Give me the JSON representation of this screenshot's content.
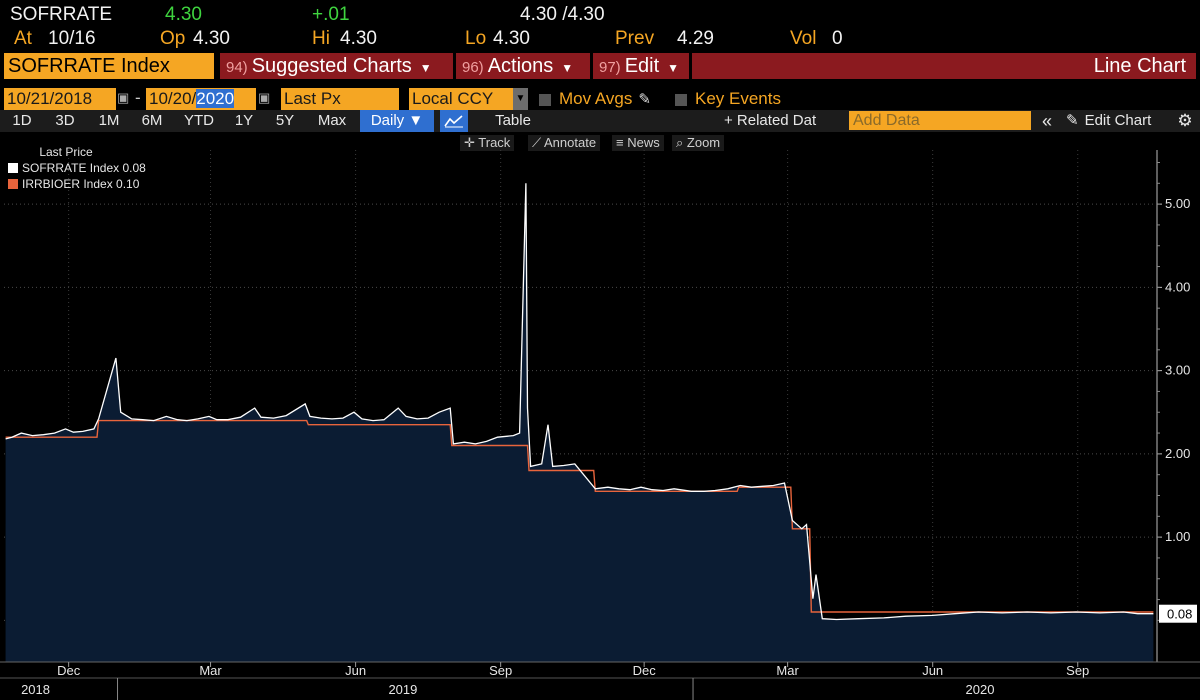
{
  "quote": {
    "ticker": "SOFRRATE",
    "last": "4.30",
    "change": "+.01",
    "bid_ask": "4.30 /4.30",
    "at_label": "At",
    "at_value": "10/16",
    "open_label": "Op",
    "open_value": "4.30",
    "high_label": "Hi",
    "high_value": "4.30",
    "low_label": "Lo",
    "low_value": "4.30",
    "prev_label": "Prev",
    "prev_value": "4.29",
    "vol_label": "Vol",
    "vol_value": "0"
  },
  "command": {
    "security": "SOFRRATE Index",
    "menu": [
      {
        "num": "94)",
        "label": "Suggested Charts"
      },
      {
        "num": "96)",
        "label": "Actions"
      },
      {
        "num": "97)",
        "label": "Edit"
      }
    ],
    "view": "Line Chart"
  },
  "params": {
    "start_date": "10/21/2018",
    "end_date_prefix": "10/20/",
    "end_date_year": "2020",
    "field": "Last Px",
    "currency": "Local CCY",
    "mov_avgs": "Mov Avgs",
    "key_events": "Key Events"
  },
  "ranges": [
    "1D",
    "3D",
    "1M",
    "6M",
    "YTD",
    "1Y",
    "5Y",
    "Max"
  ],
  "toolbar": {
    "frequency": "Daily ▼",
    "table": "Table",
    "related": "+ Related Dat",
    "add_data_placeholder": "Add Data",
    "edit_chart": "Edit Chart"
  },
  "tools": [
    "Track",
    "Annotate",
    "News",
    "Zoom"
  ],
  "colors": {
    "bg": "#000000",
    "amber": "#f5a623",
    "red_bar": "#8b1a1f",
    "sofr": "#ffffff",
    "ioer": "#e8643c",
    "area": "#0b1c33"
  },
  "chart_data": {
    "type": "line",
    "legend_title": "Last Price",
    "series": [
      {
        "name": "SOFRRATE Index",
        "last_label": "0.08",
        "points": [
          [
            "2018-10-22",
            2.18
          ],
          [
            "2018-10-26",
            2.2
          ],
          [
            "2018-11-01",
            2.25
          ],
          [
            "2018-11-08",
            2.22
          ],
          [
            "2018-11-15",
            2.23
          ],
          [
            "2018-11-22",
            2.25
          ],
          [
            "2018-11-29",
            2.3
          ],
          [
            "2018-12-04",
            2.26
          ],
          [
            "2018-12-10",
            2.27
          ],
          [
            "2018-12-17",
            2.3
          ],
          [
            "2018-12-20",
            2.42
          ],
          [
            "2018-12-31",
            3.15
          ],
          [
            "2019-01-03",
            2.5
          ],
          [
            "2019-01-10",
            2.42
          ],
          [
            "2019-01-17",
            2.41
          ],
          [
            "2019-01-24",
            2.4
          ],
          [
            "2019-02-01",
            2.45
          ],
          [
            "2019-02-08",
            2.41
          ],
          [
            "2019-02-14",
            2.4
          ],
          [
            "2019-02-21",
            2.42
          ],
          [
            "2019-02-28",
            2.45
          ],
          [
            "2019-03-05",
            2.41
          ],
          [
            "2019-03-12",
            2.41
          ],
          [
            "2019-03-20",
            2.44
          ],
          [
            "2019-03-29",
            2.55
          ],
          [
            "2019-04-02",
            2.44
          ],
          [
            "2019-04-10",
            2.43
          ],
          [
            "2019-04-18",
            2.46
          ],
          [
            "2019-04-30",
            2.6
          ],
          [
            "2019-05-03",
            2.45
          ],
          [
            "2019-05-10",
            2.43
          ],
          [
            "2019-05-17",
            2.42
          ],
          [
            "2019-05-24",
            2.43
          ],
          [
            "2019-05-31",
            2.5
          ],
          [
            "2019-06-05",
            2.42
          ],
          [
            "2019-06-12",
            2.4
          ],
          [
            "2019-06-19",
            2.41
          ],
          [
            "2019-06-28",
            2.55
          ],
          [
            "2019-07-03",
            2.45
          ],
          [
            "2019-07-10",
            2.42
          ],
          [
            "2019-07-17",
            2.43
          ],
          [
            "2019-07-24",
            2.5
          ],
          [
            "2019-07-31",
            2.55
          ],
          [
            "2019-08-02",
            2.12
          ],
          [
            "2019-08-09",
            2.14
          ],
          [
            "2019-08-16",
            2.12
          ],
          [
            "2019-08-23",
            2.15
          ],
          [
            "2019-08-30",
            2.2
          ],
          [
            "2019-09-09",
            2.22
          ],
          [
            "2019-09-13",
            2.25
          ],
          [
            "2019-09-17",
            5.25
          ],
          [
            "2019-09-18",
            2.55
          ],
          [
            "2019-09-20",
            1.85
          ],
          [
            "2019-09-27",
            1.88
          ],
          [
            "2019-10-01",
            2.35
          ],
          [
            "2019-10-04",
            1.85
          ],
          [
            "2019-10-11",
            1.86
          ],
          [
            "2019-10-18",
            1.88
          ],
          [
            "2019-10-31",
            1.58
          ],
          [
            "2019-11-08",
            1.6
          ],
          [
            "2019-11-15",
            1.58
          ],
          [
            "2019-11-22",
            1.57
          ],
          [
            "2019-11-29",
            1.6
          ],
          [
            "2019-12-06",
            1.57
          ],
          [
            "2019-12-13",
            1.56
          ],
          [
            "2019-12-20",
            1.58
          ],
          [
            "2019-12-31",
            1.55
          ],
          [
            "2020-01-08",
            1.55
          ],
          [
            "2020-01-15",
            1.56
          ],
          [
            "2020-01-23",
            1.58
          ],
          [
            "2020-01-31",
            1.62
          ],
          [
            "2020-02-07",
            1.6
          ],
          [
            "2020-02-14",
            1.61
          ],
          [
            "2020-02-21",
            1.62
          ],
          [
            "2020-02-28",
            1.65
          ],
          [
            "2020-03-04",
            1.2
          ],
          [
            "2020-03-10",
            1.1
          ],
          [
            "2020-03-13",
            1.15
          ],
          [
            "2020-03-17",
            0.26
          ],
          [
            "2020-03-19",
            0.55
          ],
          [
            "2020-03-23",
            0.02
          ],
          [
            "2020-04-01",
            0.01
          ],
          [
            "2020-04-15",
            0.02
          ],
          [
            "2020-05-01",
            0.03
          ],
          [
            "2020-05-15",
            0.05
          ],
          [
            "2020-06-01",
            0.06
          ],
          [
            "2020-06-15",
            0.08
          ],
          [
            "2020-06-30",
            0.1
          ],
          [
            "2020-07-15",
            0.09
          ],
          [
            "2020-07-31",
            0.1
          ],
          [
            "2020-08-15",
            0.09
          ],
          [
            "2020-08-31",
            0.1
          ],
          [
            "2020-09-15",
            0.09
          ],
          [
            "2020-09-30",
            0.1
          ],
          [
            "2020-10-09",
            0.08
          ],
          [
            "2020-10-19",
            0.08
          ]
        ]
      },
      {
        "name": "IRRBIOER Index",
        "last_label": "0.10",
        "points": [
          [
            "2018-10-22",
            2.2
          ],
          [
            "2018-12-19",
            2.2
          ],
          [
            "2018-12-20",
            2.4
          ],
          [
            "2019-05-01",
            2.4
          ],
          [
            "2019-05-02",
            2.35
          ],
          [
            "2019-07-31",
            2.35
          ],
          [
            "2019-08-01",
            2.1
          ],
          [
            "2019-09-18",
            2.1
          ],
          [
            "2019-09-19",
            1.8
          ],
          [
            "2019-10-30",
            1.8
          ],
          [
            "2019-10-31",
            1.55
          ],
          [
            "2020-01-29",
            1.55
          ],
          [
            "2020-01-30",
            1.6
          ],
          [
            "2020-03-03",
            1.6
          ],
          [
            "2020-03-04",
            1.1
          ],
          [
            "2020-03-15",
            1.1
          ],
          [
            "2020-03-16",
            0.1
          ],
          [
            "2020-10-19",
            0.1
          ]
        ]
      }
    ],
    "y_ticks": [
      "1.00",
      "2.00",
      "3.00",
      "4.00",
      "5.00"
    ],
    "x_tick_labels": [
      "Dec",
      "Mar",
      "Jun",
      "Sep",
      "Dec",
      "Mar",
      "Jun",
      "Sep"
    ],
    "year_labels": [
      "2018",
      "2019",
      "2020"
    ],
    "x_range": [
      "2018-10-21",
      "2020-10-20"
    ],
    "y_range": [
      -0.5,
      5.65
    ],
    "grid": "horizontal dotted",
    "legend_position": "top-left"
  }
}
